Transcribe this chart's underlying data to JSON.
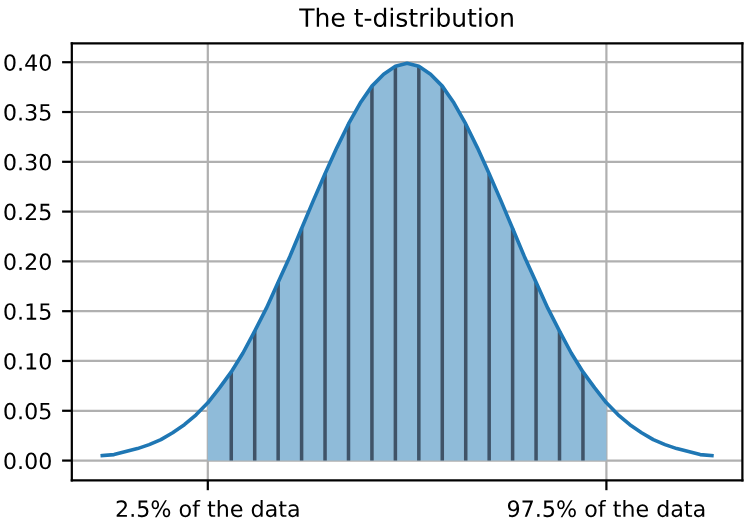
{
  "chart_data": {
    "type": "line",
    "title": "The t-distribution",
    "categories": [
      null,
      null,
      null,
      null,
      null,
      null,
      null,
      null,
      null,
      "2.5% of the data",
      null,
      null,
      null,
      null,
      null,
      null,
      null,
      null,
      null,
      null,
      null,
      null,
      null,
      null,
      null,
      null,
      null,
      null,
      null,
      null,
      null,
      null,
      null,
      null,
      null,
      null,
      null,
      null,
      null,
      null,
      null,
      null,
      null,
      "97.5% of the data",
      null,
      null,
      null,
      null,
      null,
      null,
      null,
      null,
      null
    ],
    "ylim": [
      -0.02,
      0.419
    ],
    "yticks": [
      {
        "value": 0.0,
        "label": "0.00"
      },
      {
        "value": 0.05,
        "label": "0.05"
      },
      {
        "value": 0.1,
        "label": "0.10"
      },
      {
        "value": 0.15,
        "label": "0.15"
      },
      {
        "value": 0.2,
        "label": "0.20"
      },
      {
        "value": 0.25,
        "label": "0.25"
      },
      {
        "value": 0.3,
        "label": "0.30"
      },
      {
        "value": 0.35,
        "label": "0.35"
      },
      {
        "value": 0.4,
        "label": "0.40"
      }
    ],
    "grid": true,
    "series": [
      {
        "type": "area",
        "color": "#8fbbd9",
        "values": [
          null,
          null,
          null,
          null,
          null,
          null,
          null,
          null,
          null,
          0.058,
          0.073,
          0.089,
          0.108,
          0.13,
          0.153,
          0.179,
          0.205,
          0.233,
          0.261,
          0.288,
          0.314,
          0.338,
          0.359,
          0.376,
          0.388,
          0.396,
          0.399,
          0.396,
          0.388,
          0.376,
          0.359,
          0.338,
          0.314,
          0.288,
          0.261,
          0.233,
          0.205,
          0.179,
          0.153,
          0.13,
          0.108,
          0.089,
          0.073,
          0.058,
          null,
          null,
          null,
          null,
          null,
          null,
          null,
          null,
          null
        ]
      },
      {
        "type": "bar",
        "color": "#3f5368",
        "values": [
          null,
          null,
          null,
          null,
          null,
          null,
          null,
          null,
          null,
          null,
          null,
          0.089,
          null,
          0.13,
          null,
          0.179,
          null,
          0.233,
          null,
          0.288,
          null,
          0.338,
          null,
          0.376,
          null,
          0.396,
          null,
          0.396,
          null,
          0.376,
          null,
          0.338,
          null,
          0.288,
          null,
          0.233,
          null,
          0.179,
          null,
          0.13,
          null,
          0.089,
          null,
          null,
          null,
          null,
          null,
          null,
          null,
          null,
          null,
          null,
          null
        ]
      },
      {
        "color": "#1f77b4",
        "values": [
          0.005,
          0.006,
          0.009,
          0.012,
          0.016,
          0.021,
          0.028,
          0.036,
          0.046,
          0.058,
          0.073,
          0.089,
          0.108,
          0.13,
          0.153,
          0.179,
          0.205,
          0.233,
          0.261,
          0.288,
          0.314,
          0.338,
          0.359,
          0.376,
          0.388,
          0.396,
          0.399,
          0.396,
          0.388,
          0.376,
          0.359,
          0.338,
          0.314,
          0.288,
          0.261,
          0.233,
          0.205,
          0.179,
          0.153,
          0.13,
          0.108,
          0.089,
          0.073,
          0.058,
          0.046,
          0.036,
          0.028,
          0.021,
          0.016,
          0.012,
          0.009,
          0.006,
          0.005
        ]
      }
    ]
  }
}
